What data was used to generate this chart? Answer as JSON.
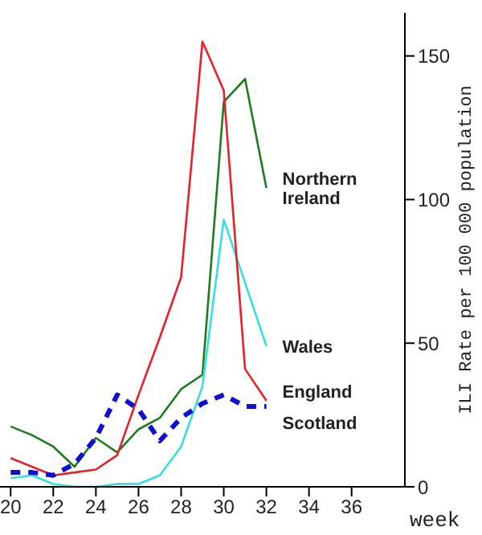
{
  "chart_data": {
    "type": "line",
    "xlabel": "week",
    "ylabel": "ILI Rate per 100 000 population",
    "x": [
      20,
      21,
      22,
      23,
      24,
      25,
      26,
      27,
      28,
      29,
      30,
      31,
      32
    ],
    "series": [
      {
        "name": "Northern Ireland",
        "color": "#1e7b1e",
        "values": [
          21,
          18,
          14,
          7,
          17,
          12,
          20,
          24,
          34,
          39,
          134,
          142,
          104
        ]
      },
      {
        "name": "Wales",
        "color": "#33e0e0",
        "values": [
          3,
          4,
          1,
          0,
          0,
          1,
          1,
          4,
          14,
          35,
          93,
          71,
          49
        ]
      },
      {
        "name": "England",
        "color": "#e8202a",
        "values": [
          10,
          7,
          4,
          5,
          6,
          11,
          32,
          52,
          73,
          155,
          138,
          41,
          30
        ]
      },
      {
        "name": "Scotland",
        "color": "#1010d0",
        "line_style": "dashed",
        "values": [
          5,
          5,
          4,
          8,
          17,
          32,
          27,
          16,
          24,
          29,
          32,
          28,
          28
        ]
      }
    ],
    "xlim": [
      19.5,
      38.5
    ],
    "xticks": [
      20,
      22,
      24,
      26,
      28,
      30,
      32,
      34,
      36
    ],
    "ylim": [
      0,
      165
    ],
    "yticks": [
      0,
      50,
      100,
      150
    ],
    "grid": false,
    "legend": false
  }
}
